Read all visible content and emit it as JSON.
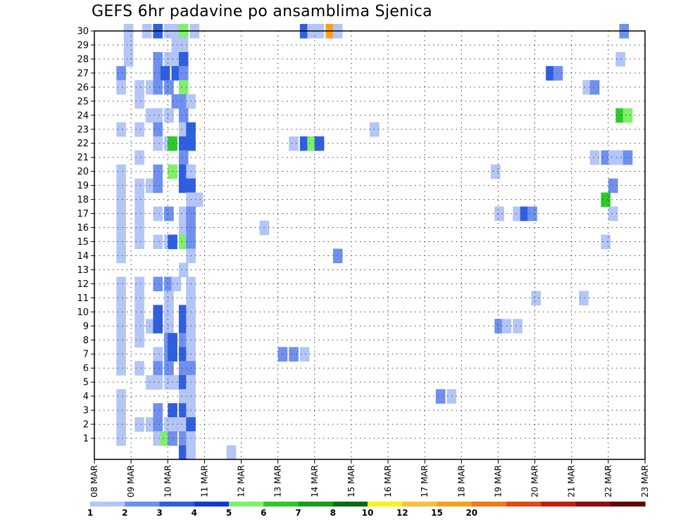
{
  "chart_data": {
    "type": "heatmap",
    "title": "GEFS 6hr padavine po ansamblima Sjenica",
    "xlabel": "",
    "ylabel": "",
    "x_ticks": [
      "08 MAR",
      "09 MAR",
      "10 MAR",
      "11 MAR",
      "12 MAR",
      "13 MAR",
      "14 MAR",
      "15 MAR",
      "16 MAR",
      "17 MAR",
      "18 MAR",
      "19 MAR",
      "20 MAR",
      "21 MAR",
      "22 MAR",
      "23 MAR"
    ],
    "xlim": [
      "08 MAR 00h",
      "23 MAR 00h"
    ],
    "time_step_hours": 6,
    "y_ticks": [
      1,
      2,
      3,
      4,
      5,
      6,
      7,
      8,
      9,
      10,
      11,
      12,
      13,
      14,
      15,
      16,
      17,
      18,
      19,
      20,
      21,
      22,
      23,
      24,
      25,
      26,
      27,
      28,
      29,
      30
    ],
    "ylim": [
      0,
      30
    ],
    "grid": true,
    "colorbar": {
      "levels": [
        "1",
        "2",
        "3",
        "4",
        "5",
        "6",
        "7",
        "8",
        "10",
        "12",
        "15",
        "20"
      ],
      "colors": [
        "#b3c6f7",
        "#6f90ef",
        "#2f5fe0",
        "#1238d4",
        "#7ef06a",
        "#2ec82a",
        "#1a9e1a",
        "#0c6a10",
        "#f5f51e",
        "#f5c040",
        "#f5a020",
        "#ef7a18",
        "#e04a14",
        "#c41e10",
        "#900e0c",
        "#5e0608"
      ]
    },
    "member_cells": [
      {
        "member": 30,
        "cells": [
          [
            0.8,
            1
          ],
          [
            1.3,
            1
          ],
          [
            1.6,
            3
          ],
          [
            1.9,
            1
          ],
          [
            2.1,
            1
          ],
          [
            2.3,
            5
          ],
          [
            2.6,
            1
          ],
          [
            5.6,
            3
          ],
          [
            5.8,
            1
          ],
          [
            6.0,
            1
          ],
          [
            6.3,
            11
          ],
          [
            6.5,
            1
          ],
          [
            14.3,
            2
          ]
        ]
      },
      {
        "member": 29,
        "cells": [
          [
            0.8,
            1
          ],
          [
            2.1,
            1
          ],
          [
            2.3,
            1
          ]
        ]
      },
      {
        "member": 28,
        "cells": [
          [
            0.8,
            1
          ],
          [
            1.6,
            2
          ],
          [
            1.9,
            1
          ],
          [
            2.1,
            1
          ],
          [
            2.3,
            3
          ],
          [
            14.2,
            1
          ]
        ]
      },
      {
        "member": 27,
        "cells": [
          [
            0.6,
            2
          ],
          [
            1.6,
            2
          ],
          [
            1.8,
            3
          ],
          [
            2.1,
            3
          ],
          [
            2.3,
            2
          ],
          [
            12.3,
            3
          ],
          [
            12.5,
            2
          ]
        ]
      },
      {
        "member": 26,
        "cells": [
          [
            0.6,
            1
          ],
          [
            1.1,
            1
          ],
          [
            1.4,
            1
          ],
          [
            1.6,
            2
          ],
          [
            1.9,
            2
          ],
          [
            2.3,
            5
          ],
          [
            13.3,
            1
          ],
          [
            13.5,
            2
          ]
        ]
      },
      {
        "member": 25,
        "cells": [
          [
            1.1,
            1
          ],
          [
            2.1,
            2
          ],
          [
            2.3,
            2
          ],
          [
            2.5,
            1
          ]
        ]
      },
      {
        "member": 24,
        "cells": [
          [
            1.4,
            1
          ],
          [
            1.6,
            1
          ],
          [
            1.9,
            1
          ],
          [
            2.3,
            2
          ],
          [
            14.2,
            6
          ],
          [
            14.4,
            5
          ]
        ]
      },
      {
        "member": 23,
        "cells": [
          [
            0.6,
            1
          ],
          [
            1.1,
            1
          ],
          [
            1.6,
            2
          ],
          [
            2.3,
            1
          ],
          [
            2.5,
            3
          ],
          [
            7.5,
            1
          ]
        ]
      },
      {
        "member": 22,
        "cells": [
          [
            1.6,
            1
          ],
          [
            1.9,
            1
          ],
          [
            2.0,
            6
          ],
          [
            2.3,
            3
          ],
          [
            2.5,
            3
          ],
          [
            5.3,
            1
          ],
          [
            5.6,
            3
          ],
          [
            5.8,
            5
          ],
          [
            6.0,
            3
          ]
        ]
      },
      {
        "member": 21,
        "cells": [
          [
            1.1,
            1
          ],
          [
            2.3,
            2
          ],
          [
            13.5,
            1
          ],
          [
            13.8,
            2
          ],
          [
            14.0,
            1
          ],
          [
            14.2,
            1
          ],
          [
            14.4,
            2
          ]
        ]
      },
      {
        "member": 20,
        "cells": [
          [
            0.6,
            1
          ],
          [
            1.6,
            2
          ],
          [
            2.0,
            5
          ],
          [
            2.3,
            3
          ],
          [
            2.5,
            1
          ],
          [
            10.8,
            1
          ]
        ]
      },
      {
        "member": 19,
        "cells": [
          [
            0.6,
            1
          ],
          [
            1.1,
            1
          ],
          [
            1.4,
            1
          ],
          [
            1.6,
            2
          ],
          [
            2.3,
            3
          ],
          [
            2.5,
            3
          ],
          [
            14.0,
            2
          ]
        ]
      },
      {
        "member": 18,
        "cells": [
          [
            0.6,
            1
          ],
          [
            1.1,
            1
          ],
          [
            2.5,
            1
          ],
          [
            2.7,
            1
          ],
          [
            13.8,
            6
          ]
        ]
      },
      {
        "member": 17,
        "cells": [
          [
            0.6,
            1
          ],
          [
            1.1,
            1
          ],
          [
            1.6,
            1
          ],
          [
            1.9,
            2
          ],
          [
            2.3,
            1
          ],
          [
            2.5,
            2
          ],
          [
            10.9,
            1
          ],
          [
            11.4,
            1
          ],
          [
            11.6,
            3
          ],
          [
            11.8,
            2
          ],
          [
            14.0,
            1
          ]
        ]
      },
      {
        "member": 16,
        "cells": [
          [
            0.6,
            1
          ],
          [
            1.1,
            1
          ],
          [
            2.3,
            1
          ],
          [
            2.5,
            2
          ],
          [
            4.5,
            1
          ]
        ]
      },
      {
        "member": 15,
        "cells": [
          [
            0.6,
            1
          ],
          [
            1.1,
            1
          ],
          [
            1.6,
            1
          ],
          [
            1.9,
            1
          ],
          [
            2.0,
            3
          ],
          [
            2.3,
            5
          ],
          [
            2.5,
            2
          ],
          [
            13.8,
            1
          ]
        ]
      },
      {
        "member": 14,
        "cells": [
          [
            0.6,
            1
          ],
          [
            2.5,
            1
          ],
          [
            6.5,
            2
          ]
        ]
      },
      {
        "member": 13,
        "cells": [
          [
            2.3,
            1
          ]
        ]
      },
      {
        "member": 12,
        "cells": [
          [
            0.6,
            1
          ],
          [
            1.1,
            1
          ],
          [
            1.6,
            2
          ],
          [
            1.9,
            2
          ],
          [
            2.1,
            1
          ],
          [
            2.5,
            1
          ]
        ]
      },
      {
        "member": 11,
        "cells": [
          [
            0.6,
            1
          ],
          [
            1.1,
            1
          ],
          [
            1.9,
            1
          ],
          [
            2.5,
            1
          ],
          [
            11.9,
            1
          ],
          [
            13.2,
            1
          ]
        ]
      },
      {
        "member": 10,
        "cells": [
          [
            0.6,
            1
          ],
          [
            1.1,
            1
          ],
          [
            1.6,
            3
          ],
          [
            1.9,
            1
          ],
          [
            2.3,
            3
          ],
          [
            2.5,
            1
          ]
        ]
      },
      {
        "member": 9,
        "cells": [
          [
            0.6,
            1
          ],
          [
            1.1,
            1
          ],
          [
            1.4,
            1
          ],
          [
            1.6,
            3
          ],
          [
            1.9,
            1
          ],
          [
            2.3,
            3
          ],
          [
            2.5,
            1
          ],
          [
            10.9,
            2
          ],
          [
            11.1,
            1
          ],
          [
            11.4,
            1
          ]
        ]
      },
      {
        "member": 8,
        "cells": [
          [
            0.6,
            1
          ],
          [
            1.1,
            1
          ],
          [
            1.9,
            2
          ],
          [
            2.0,
            3
          ],
          [
            2.3,
            2
          ],
          [
            2.5,
            1
          ]
        ]
      },
      {
        "member": 7,
        "cells": [
          [
            0.6,
            1
          ],
          [
            1.6,
            1
          ],
          [
            1.9,
            2
          ],
          [
            2.0,
            3
          ],
          [
            2.3,
            3
          ],
          [
            2.5,
            1
          ],
          [
            5.0,
            2
          ],
          [
            5.3,
            2
          ],
          [
            5.6,
            1
          ]
        ]
      },
      {
        "member": 6,
        "cells": [
          [
            0.6,
            1
          ],
          [
            1.1,
            1
          ],
          [
            1.6,
            2
          ],
          [
            1.9,
            2
          ],
          [
            2.3,
            2
          ],
          [
            2.5,
            2
          ]
        ]
      },
      {
        "member": 5,
        "cells": [
          [
            1.4,
            1
          ],
          [
            1.6,
            1
          ],
          [
            1.9,
            1
          ],
          [
            2.1,
            1
          ],
          [
            2.3,
            3
          ],
          [
            2.5,
            1
          ]
        ]
      },
      {
        "member": 4,
        "cells": [
          [
            0.6,
            1
          ],
          [
            2.3,
            1
          ],
          [
            2.5,
            1
          ],
          [
            9.3,
            2
          ],
          [
            9.6,
            1
          ]
        ]
      },
      {
        "member": 3,
        "cells": [
          [
            0.6,
            1
          ],
          [
            1.6,
            2
          ],
          [
            2.0,
            3
          ],
          [
            2.3,
            3
          ],
          [
            2.5,
            1
          ]
        ]
      },
      {
        "member": 2,
        "cells": [
          [
            0.6,
            1
          ],
          [
            1.1,
            1
          ],
          [
            1.4,
            1
          ],
          [
            1.6,
            2
          ],
          [
            1.9,
            1
          ],
          [
            2.1,
            1
          ],
          [
            2.3,
            1
          ],
          [
            2.5,
            3
          ]
        ]
      },
      {
        "member": 1,
        "cells": [
          [
            0.6,
            1
          ],
          [
            1.6,
            1
          ],
          [
            1.8,
            5
          ],
          [
            2.0,
            2
          ],
          [
            2.3,
            2
          ],
          [
            2.5,
            1
          ]
        ]
      },
      {
        "member": 0,
        "cells": [
          [
            2.3,
            3
          ],
          [
            2.5,
            1
          ],
          [
            3.6,
            1
          ]
        ]
      }
    ]
  }
}
